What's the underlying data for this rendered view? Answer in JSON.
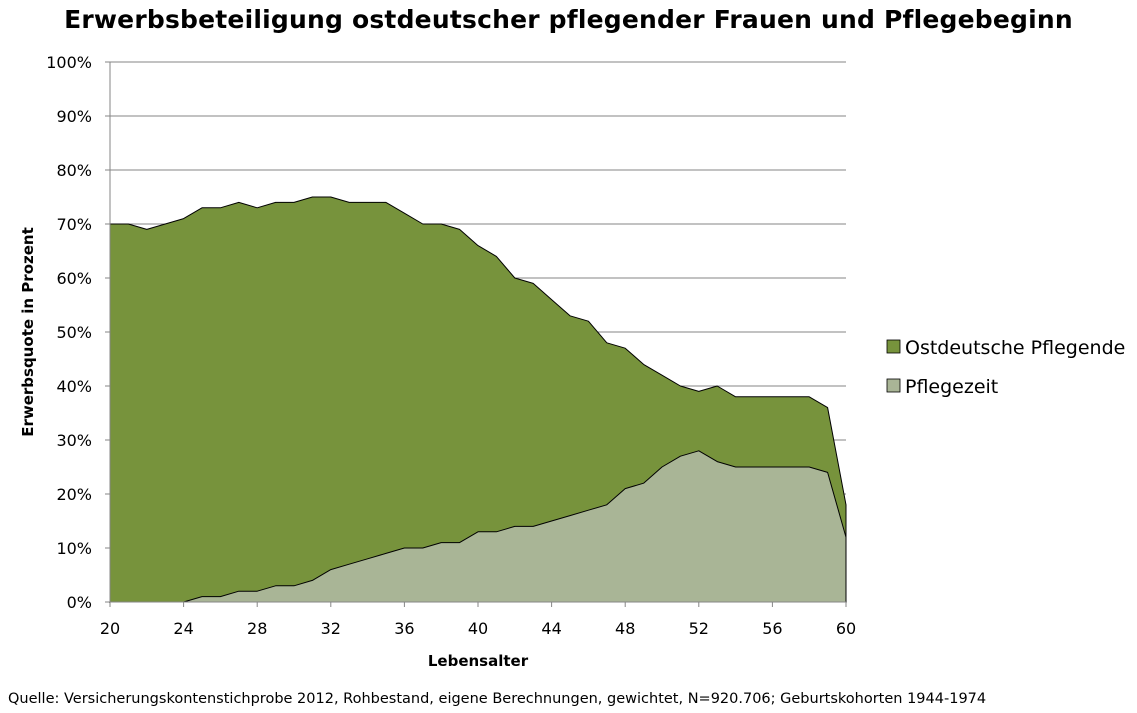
{
  "chart_data": {
    "type": "area",
    "title": "Erwerbsbeteiligung ostdeutscher pflegender Frauen und Pflegebeginn",
    "xlabel": "Lebensalter",
    "ylabel": "Erwerbsquote in Prozent",
    "xlim": [
      20,
      60
    ],
    "ylim": [
      0,
      100
    ],
    "x_ticks": [
      20,
      24,
      28,
      32,
      36,
      40,
      44,
      48,
      52,
      56,
      60
    ],
    "y_ticks": [
      "0%",
      "10%",
      "20%",
      "30%",
      "40%",
      "50%",
      "60%",
      "70%",
      "80%",
      "90%",
      "100%"
    ],
    "grid": "horizontal",
    "legend_position": "right",
    "x": [
      20,
      21,
      22,
      23,
      24,
      25,
      26,
      27,
      28,
      29,
      30,
      31,
      32,
      33,
      34,
      35,
      36,
      37,
      38,
      39,
      40,
      41,
      42,
      43,
      44,
      45,
      46,
      47,
      48,
      49,
      50,
      51,
      52,
      53,
      54,
      55,
      56,
      57,
      58,
      59,
      60
    ],
    "series": [
      {
        "name": "Ostdeutsche Pflegende",
        "color": "#77933c",
        "values": [
          70,
          70,
          69,
          70,
          71,
          73,
          73,
          74,
          73,
          74,
          74,
          75,
          75,
          74,
          74,
          74,
          72,
          70,
          70,
          69,
          66,
          64,
          60,
          59,
          56,
          53,
          52,
          48,
          47,
          44,
          42,
          40,
          39,
          40,
          38,
          38,
          38,
          38,
          38,
          36,
          18
        ]
      },
      {
        "name": "Pflegezeit",
        "color": "#a9b596",
        "values": [
          0,
          0,
          0,
          0,
          0,
          1,
          1,
          2,
          2,
          3,
          3,
          4,
          6,
          7,
          8,
          9,
          10,
          10,
          11,
          11,
          13,
          13,
          14,
          14,
          15,
          16,
          17,
          18,
          21,
          22,
          25,
          27,
          28,
          26,
          25,
          25,
          25,
          25,
          25,
          24,
          12
        ]
      }
    ],
    "source": "Quelle: Versicherungskontenstichprobe 2012, Rohbestand, eigene Berechnungen, gewichtet, N=920.706; Geburtskohorten 1944-1974"
  }
}
